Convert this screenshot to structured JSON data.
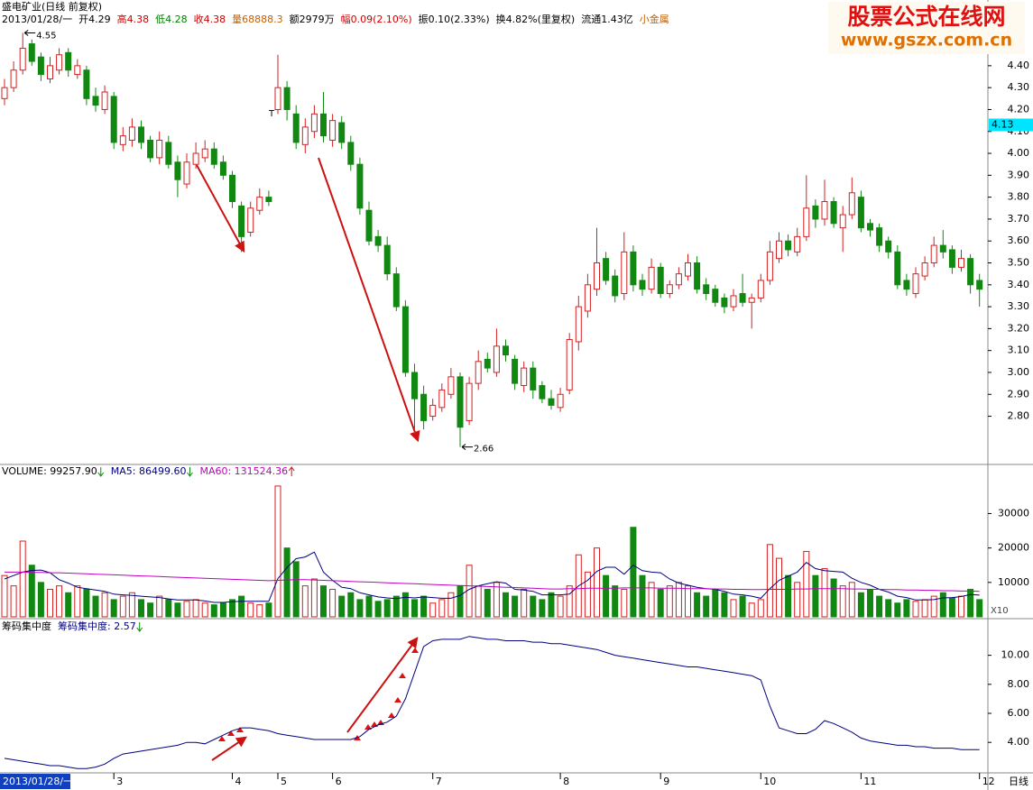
{
  "watermark": {
    "title": "股票公式在线网",
    "url": "www.gszx.com.cn"
  },
  "chart_data": [
    {
      "type": "candlestick",
      "title": "盛电矿业(日线 前复权)",
      "info": [
        "2013/01/28/一",
        "开4.29",
        "高4.38",
        "低4.28",
        "收4.38",
        "量68888.3",
        "额2979万",
        "幅0.09(2.10%)",
        "振0.10(2.33%)",
        "换4.82%(里复权)",
        "流通1.43亿",
        "小金属"
      ],
      "info_colors": [
        "#000000",
        "#000000",
        "#d00000",
        "#008000",
        "#d00000",
        "#c06000",
        "#000000",
        "#d00000",
        "#000000",
        "#000000",
        "#000000",
        "#c06000"
      ],
      "color_up": "#d42020",
      "color_down": "#118811",
      "open": [
        4.25,
        4.3,
        4.38,
        4.5,
        4.44,
        4.34,
        4.38,
        4.46,
        4.36,
        4.38,
        4.26,
        4.2,
        4.26,
        4.04,
        4.06,
        4.12,
        4.06,
        3.98,
        4.05,
        3.96,
        3.86,
        3.95,
        3.98,
        4.02,
        3.96,
        3.9,
        3.76,
        3.64,
        3.74,
        3.8,
        4.2,
        4.3,
        4.18,
        4.04,
        4.1,
        4.18,
        4.06,
        4.14,
        4.05,
        3.95,
        3.74,
        3.62,
        3.58,
        3.45,
        3.3,
        3.0,
        2.9,
        2.8,
        2.84,
        2.9,
        2.98,
        2.78,
        2.95,
        3.06,
        3.0,
        3.12,
        3.06,
        2.94,
        3.02,
        2.94,
        2.88,
        2.84,
        2.92,
        3.14,
        3.28,
        3.38,
        3.52,
        3.44,
        3.36,
        3.55,
        3.42,
        3.38,
        3.48,
        3.36,
        3.4,
        3.44,
        3.5,
        3.4,
        3.38,
        3.34,
        3.3,
        3.36,
        3.32,
        3.34,
        3.42,
        3.52,
        3.6,
        3.55,
        3.62,
        3.76,
        3.7,
        3.78,
        3.66,
        3.72,
        3.8,
        3.68,
        3.66,
        3.6,
        3.55,
        3.42,
        3.36,
        3.44,
        3.5,
        3.58,
        3.56,
        3.48,
        3.52,
        3.42
      ],
      "high": [
        4.34,
        4.42,
        4.55,
        4.52,
        4.46,
        4.44,
        4.48,
        4.48,
        4.43,
        4.4,
        4.3,
        4.31,
        4.28,
        4.12,
        4.16,
        4.15,
        4.08,
        4.1,
        4.08,
        3.99,
        4.0,
        4.05,
        4.06,
        4.05,
        3.99,
        3.92,
        3.78,
        3.78,
        3.84,
        3.83,
        4.45,
        4.33,
        4.22,
        4.16,
        4.22,
        4.28,
        4.18,
        4.17,
        4.08,
        3.98,
        3.78,
        3.65,
        3.62,
        3.48,
        3.33,
        3.04,
        2.94,
        2.88,
        2.95,
        3.02,
        3.0,
        2.98,
        3.1,
        3.09,
        3.2,
        3.15,
        3.08,
        3.05,
        3.05,
        2.96,
        2.92,
        2.93,
        3.18,
        3.35,
        3.45,
        3.66,
        3.55,
        3.47,
        3.64,
        3.58,
        3.45,
        3.52,
        3.5,
        3.42,
        3.48,
        3.54,
        3.53,
        3.43,
        3.4,
        3.36,
        3.38,
        3.45,
        3.36,
        3.45,
        3.6,
        3.64,
        3.63,
        3.66,
        3.9,
        3.79,
        3.88,
        3.8,
        3.76,
        3.89,
        3.83,
        3.7,
        3.68,
        3.62,
        3.58,
        3.45,
        3.48,
        3.53,
        3.62,
        3.65,
        3.58,
        3.56,
        3.54,
        3.45
      ],
      "low": [
        4.22,
        4.28,
        4.36,
        4.4,
        4.33,
        4.32,
        4.36,
        4.35,
        4.34,
        4.22,
        4.19,
        4.18,
        4.02,
        4.01,
        4.03,
        4.02,
        3.96,
        3.95,
        3.93,
        3.8,
        3.84,
        3.93,
        3.96,
        3.93,
        3.88,
        3.75,
        3.55,
        3.62,
        3.72,
        3.76,
        4.18,
        4.15,
        4.02,
        4.0,
        4.07,
        4.05,
        4.03,
        4.02,
        3.92,
        3.72,
        3.58,
        3.55,
        3.42,
        3.28,
        2.98,
        2.72,
        2.74,
        2.78,
        2.82,
        2.88,
        2.66,
        2.76,
        2.92,
        3.0,
        2.98,
        3.05,
        2.92,
        2.91,
        2.88,
        2.86,
        2.83,
        2.82,
        2.9,
        3.1,
        3.25,
        3.35,
        3.4,
        3.32,
        3.33,
        3.37,
        3.35,
        3.36,
        3.34,
        3.34,
        3.38,
        3.42,
        3.36,
        3.33,
        3.3,
        3.27,
        3.28,
        3.3,
        3.2,
        3.32,
        3.4,
        3.5,
        3.53,
        3.53,
        3.6,
        3.66,
        3.67,
        3.66,
        3.55,
        3.7,
        3.64,
        3.62,
        3.55,
        3.52,
        3.38,
        3.35,
        3.34,
        3.42,
        3.48,
        3.52,
        3.45,
        3.46,
        3.36,
        3.3
      ],
      "close": [
        4.3,
        4.38,
        4.48,
        4.42,
        4.36,
        4.4,
        4.45,
        4.38,
        4.4,
        4.25,
        4.22,
        4.28,
        4.05,
        4.08,
        4.12,
        4.05,
        3.98,
        4.06,
        3.95,
        3.88,
        3.96,
        4.0,
        4.02,
        3.95,
        3.9,
        3.78,
        3.62,
        3.75,
        3.8,
        3.78,
        4.3,
        4.2,
        4.05,
        4.12,
        4.18,
        4.08,
        4.15,
        4.05,
        3.95,
        3.75,
        3.6,
        3.58,
        3.45,
        3.3,
        3.0,
        2.88,
        2.78,
        2.85,
        2.92,
        2.98,
        2.75,
        2.95,
        3.05,
        3.02,
        3.12,
        3.08,
        2.95,
        3.02,
        2.92,
        2.88,
        2.85,
        2.9,
        3.15,
        3.3,
        3.4,
        3.5,
        3.42,
        3.35,
        3.55,
        3.4,
        3.38,
        3.48,
        3.36,
        3.4,
        3.45,
        3.5,
        3.38,
        3.36,
        3.32,
        3.3,
        3.35,
        3.32,
        3.34,
        3.42,
        3.55,
        3.6,
        3.56,
        3.62,
        3.75,
        3.7,
        3.78,
        3.68,
        3.72,
        3.82,
        3.66,
        3.65,
        3.58,
        3.55,
        3.4,
        3.38,
        3.45,
        3.5,
        3.58,
        3.55,
        3.48,
        3.52,
        3.4,
        3.38
      ],
      "ylim": [
        2.58,
        4.7
      ],
      "yticks": [
        {
          "value": 2.8,
          "label": "2.80"
        },
        {
          "value": 2.9,
          "label": "2.90"
        },
        {
          "value": 3.0,
          "label": "3.00"
        },
        {
          "value": 3.1,
          "label": "3.10"
        },
        {
          "value": 3.2,
          "label": "3.20"
        },
        {
          "value": 3.3,
          "label": "3.30"
        },
        {
          "value": 3.4,
          "label": "3.40"
        },
        {
          "value": 3.5,
          "label": "3.50"
        },
        {
          "value": 3.6,
          "label": "3.60"
        },
        {
          "value": 3.7,
          "label": "3.70"
        },
        {
          "value": 3.8,
          "label": "3.80"
        },
        {
          "value": 3.9,
          "label": "3.90"
        },
        {
          "value": 4.0,
          "label": "4.00"
        },
        {
          "value": 4.1,
          "label": "4.10"
        },
        {
          "value": 4.2,
          "label": "4.20"
        },
        {
          "value": 4.3,
          "label": "4.30"
        },
        {
          "value": 4.4,
          "label": "4.40"
        }
      ],
      "last_price": 4.13,
      "annotations": [
        "T"
      ],
      "xticks": [
        {
          "value": 12,
          "label": "3"
        },
        {
          "value": 25,
          "label": "4"
        },
        {
          "value": 30,
          "label": "5"
        },
        {
          "value": 36,
          "label": "6"
        },
        {
          "value": 47,
          "label": "7"
        },
        {
          "value": 61,
          "label": "8"
        },
        {
          "value": 72,
          "label": "9"
        },
        {
          "value": 83,
          "label": "10"
        },
        {
          "value": 94,
          "label": "11"
        },
        {
          "value": 107,
          "label": "12"
        }
      ]
    },
    {
      "type": "volume",
      "header": [
        "VOLUME: 99257.90",
        "MA5: 86499.60",
        "MA60: 131524.36"
      ],
      "header_colors": [
        "#000000",
        "#000080",
        "#c000c0"
      ],
      "header_arrows": [
        "down",
        "down",
        "up"
      ],
      "values": [
        12000,
        9000,
        22000,
        15000,
        10000,
        8000,
        9000,
        7000,
        9000,
        8000,
        6000,
        7000,
        5000,
        6000,
        7000,
        5000,
        4000,
        6000,
        5000,
        4000,
        4500,
        5000,
        4000,
        3500,
        4000,
        5000,
        6000,
        4000,
        3500,
        4000,
        38000,
        20000,
        16000,
        9000,
        11000,
        9000,
        8000,
        6000,
        7000,
        5000,
        6000,
        4500,
        5000,
        6000,
        7000,
        5000,
        6000,
        4000,
        5000,
        7000,
        9000,
        15000,
        9000,
        8000,
        10000,
        7000,
        6000,
        8000,
        6000,
        5000,
        7000,
        6000,
        9000,
        18000,
        13000,
        20000,
        12000,
        9000,
        8000,
        26000,
        12000,
        10000,
        8000,
        9000,
        10000,
        9000,
        7000,
        6000,
        8000,
        7000,
        5000,
        6000,
        4000,
        5000,
        21000,
        17000,
        12000,
        10000,
        19000,
        12000,
        14000,
        11000,
        9000,
        10000,
        7000,
        8000,
        6000,
        5000,
        4000,
        5000,
        4500,
        5000,
        6000,
        7000,
        5500,
        6000,
        8000,
        5000
      ],
      "series": [
        {
          "color": "#000080",
          "values": [
            11000,
            12000,
            13000,
            13500,
            13600,
            12800,
            10800,
            9800,
            8600,
            8200,
            7800,
            7400,
            6600,
            6400,
            6200,
            6000,
            5800,
            5600,
            5200,
            4900,
            4900,
            4900,
            4600,
            4200,
            4200,
            4400,
            4500,
            4500,
            4500,
            4500,
            11100,
            14300,
            16900,
            17400,
            18800,
            13000,
            10600,
            8600,
            8200,
            7000,
            6400,
            5800,
            5500,
            5300,
            5700,
            5500,
            5800,
            5600,
            5400,
            5400,
            6200,
            8000,
            9000,
            9600,
            10200,
            9800,
            8000,
            7800,
            7400,
            6400,
            6400,
            6400,
            6600,
            9000,
            10600,
            13200,
            14400,
            14400,
            12400,
            15000,
            13400,
            13000,
            12800,
            11000,
            9800,
            9200,
            8600,
            8200,
            8000,
            7400,
            6600,
            6400,
            6000,
            5400,
            8200,
            10600,
            11800,
            13000,
            15800,
            14000,
            13400,
            13200,
            13000,
            11200,
            10000,
            9200,
            8000,
            7200,
            6000,
            5600,
            4900,
            4900,
            5000,
            5500,
            5600,
            5900,
            6500,
            6300
          ]
        },
        {
          "color": "#c000c0",
          "values": [
            13000,
            13000,
            13000,
            12900,
            12900,
            12800,
            12800,
            12700,
            12600,
            12500,
            12400,
            12300,
            12200,
            12100,
            12000,
            11900,
            11800,
            11700,
            11600,
            11500,
            11400,
            11300,
            11200,
            11100,
            11000,
            10900,
            10800,
            10700,
            10600,
            10500,
            10600,
            10700,
            10800,
            10800,
            10700,
            10600,
            10500,
            10400,
            10300,
            10200,
            10100,
            10000,
            9900,
            9800,
            9700,
            9600,
            9500,
            9400,
            9300,
            9200,
            9100,
            9000,
            8900,
            8800,
            8700,
            8600,
            8500,
            8400,
            8300,
            8200,
            8100,
            8100,
            8200,
            8200,
            8300,
            8300,
            8300,
            8300,
            8400,
            8400,
            8400,
            8400,
            8300,
            8300,
            8300,
            8200,
            8200,
            8200,
            8100,
            8100,
            8000,
            8000,
            7900,
            7900,
            8000,
            8000,
            8000,
            8100,
            8100,
            8200,
            8200,
            8200,
            8200,
            8100,
            8100,
            8000,
            8000,
            7900,
            7900,
            7800,
            7800,
            7700,
            7700,
            7600,
            7600,
            7500,
            7500,
            7400
          ]
        }
      ],
      "ylim": [
        0,
        44000
      ],
      "yticks": [
        10000,
        20000,
        30000
      ],
      "unit": "X10"
    },
    {
      "type": "line",
      "header": [
        "筹码集中度",
        "筹码集中度: 2.57"
      ],
      "header_colors": [
        "#000000",
        "#000080"
      ],
      "header_arrows": [
        null,
        "down"
      ],
      "color": "#000080",
      "values": [
        2.9,
        2.8,
        2.7,
        2.6,
        2.5,
        2.4,
        2.4,
        2.3,
        2.2,
        2.2,
        2.3,
        2.5,
        2.9,
        3.2,
        3.3,
        3.4,
        3.5,
        3.6,
        3.7,
        3.8,
        4.0,
        4.0,
        3.9,
        4.2,
        4.5,
        4.8,
        5.0,
        5.0,
        4.9,
        4.8,
        4.6,
        4.5,
        4.4,
        4.3,
        4.2,
        4.2,
        4.2,
        4.2,
        4.2,
        4.4,
        4.9,
        5.2,
        5.4,
        5.8,
        7.0,
        8.8,
        10.6,
        11.0,
        11.1,
        11.1,
        11.1,
        11.3,
        11.2,
        11.1,
        11.1,
        11.0,
        11.0,
        11.0,
        10.9,
        10.9,
        10.8,
        10.8,
        10.7,
        10.6,
        10.5,
        10.4,
        10.2,
        10.0,
        9.9,
        9.8,
        9.7,
        9.6,
        9.5,
        9.4,
        9.3,
        9.2,
        9.2,
        9.1,
        9.0,
        8.9,
        8.8,
        8.7,
        8.6,
        8.3,
        6.5,
        5.0,
        4.8,
        4.6,
        4.6,
        4.9,
        5.5,
        5.3,
        5.0,
        4.7,
        4.3,
        4.1,
        4.0,
        3.9,
        3.8,
        3.8,
        3.7,
        3.7,
        3.6,
        3.6,
        3.6,
        3.5,
        3.5,
        3.5
      ],
      "ylim": [
        1.9,
        12.4
      ],
      "yticks": [
        {
          "value": 4,
          "label": "4.00"
        },
        {
          "value": 6,
          "label": "6.00"
        },
        {
          "value": 8,
          "label": "8.00"
        },
        {
          "value": 10,
          "label": "10.00"
        }
      ],
      "period_label": "日线"
    }
  ]
}
